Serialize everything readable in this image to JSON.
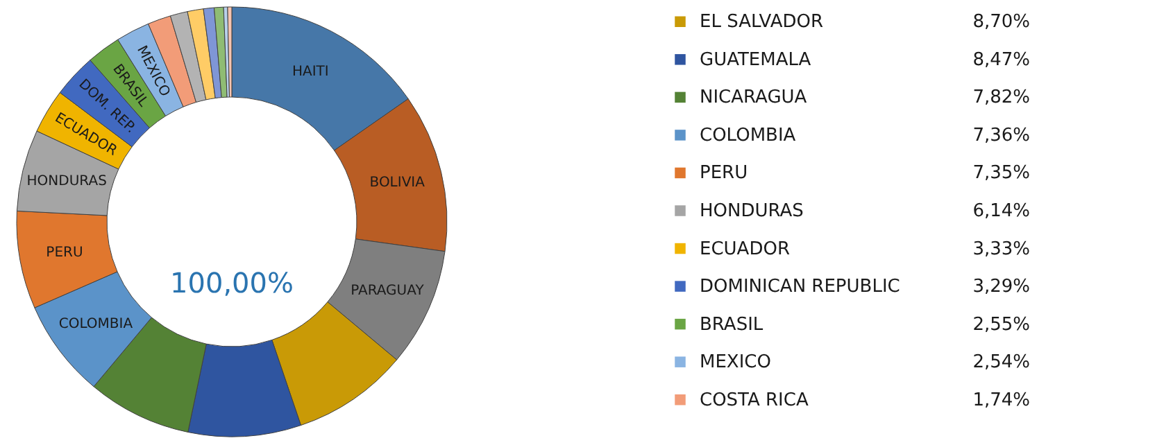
{
  "chart_data": {
    "type": "donut",
    "categories": [
      "HAITI",
      "BOLIVIA",
      "PARAGUAY",
      "EL SALVADOR",
      "GUATEMALA",
      "NICARAGUA",
      "COLOMBIA",
      "PERU",
      "HONDURAS",
      "ECUADOR",
      "DOMINICAN REPUBLIC",
      "BRASIL",
      "MEXICO",
      "COSTA RICA",
      null,
      null,
      null,
      null,
      null,
      null
    ],
    "values": [
      15.3,
      11.9,
      8.9,
      8.7,
      8.47,
      7.82,
      7.36,
      7.35,
      6.14,
      3.33,
      3.29,
      2.55,
      2.54,
      1.74,
      1.3,
      1.2,
      0.8,
      0.7,
      0.3,
      0.31
    ],
    "colors": [
      "#4677a8",
      "#b95d24",
      "#7f7f7f",
      "#c99a06",
      "#2f55a0",
      "#548235",
      "#5b93c9",
      "#e0772e",
      "#a5a5a5",
      "#f0b400",
      "#4169c0",
      "#6aa544",
      "#8ab4e2",
      "#f29c78",
      "#b3b3b3",
      "#ffcc66",
      "#7f96d6",
      "#8fbc74",
      "#b8d0ea",
      "#f5c4b0"
    ],
    "value_labels": [
      null,
      null,
      null,
      "8,70%",
      "8,47%",
      "7,82%",
      "7,36%",
      "7,35%",
      "6,14%",
      "3,33%",
      "3,29%",
      "2,55%",
      "2,54%",
      "1,74%",
      null,
      null,
      null,
      null,
      null,
      null
    ],
    "annotations": [
      {
        "text": "COLOMBIA",
        "x": "COLOMBIA"
      },
      {
        "text": "PERU",
        "x": "PERU"
      },
      {
        "text": "HONDURAS",
        "x": "HONDURAS"
      },
      {
        "text": "ECUADOR",
        "x": "ECUADOR"
      },
      {
        "text": "DOM. REP.",
        "x": "DOMINICAN REPUBLIC"
      },
      {
        "text": "BRASIL",
        "x": "BRASIL"
      },
      {
        "text": "MEXICO",
        "x": "MEXICO"
      },
      "100,00%"
    ],
    "legend": "right"
  }
}
